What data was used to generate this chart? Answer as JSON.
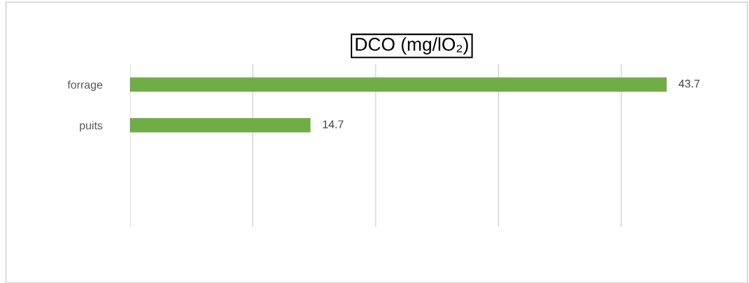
{
  "chart_data": {
    "type": "bar",
    "orientation": "horizontal",
    "title": "DCO (mg/lO₂)",
    "categories": [
      "forrage",
      "puits",
      null,
      null
    ],
    "values": [
      43.7,
      14.7,
      null,
      null
    ],
    "color": "#70ad47",
    "xticks": [
      {
        "value": 0,
        "label": null
      },
      {
        "value": 10,
        "label": null
      },
      {
        "value": 20,
        "label": null
      },
      {
        "value": 30,
        "label": null
      },
      {
        "value": 40,
        "label": null
      }
    ],
    "tick_labels": "y",
    "grid": "x",
    "data_labels": true,
    "legend": false
  }
}
